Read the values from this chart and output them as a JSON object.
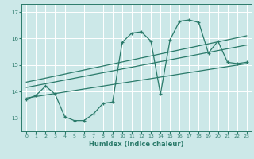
{
  "title": "",
  "xlabel": "Humidex (Indice chaleur)",
  "ylabel": "",
  "bg_color": "#cce8e8",
  "line_color": "#2a7a6a",
  "xlim": [
    -0.5,
    23.5
  ],
  "ylim": [
    12.5,
    17.3
  ],
  "yticks": [
    13,
    14,
    15,
    16,
    17
  ],
  "xticks": [
    0,
    1,
    2,
    3,
    4,
    5,
    6,
    7,
    8,
    9,
    10,
    11,
    12,
    13,
    14,
    15,
    16,
    17,
    18,
    19,
    20,
    21,
    22,
    23
  ],
  "main_x": [
    0,
    1,
    2,
    3,
    4,
    5,
    6,
    7,
    8,
    9,
    10,
    11,
    12,
    13,
    14,
    15,
    16,
    17,
    18,
    19,
    20,
    21,
    22,
    23
  ],
  "main_y": [
    13.7,
    13.85,
    14.2,
    13.9,
    13.05,
    12.9,
    12.9,
    13.15,
    13.55,
    13.6,
    15.85,
    16.2,
    16.25,
    15.9,
    13.9,
    15.95,
    16.65,
    16.7,
    16.6,
    15.45,
    15.9,
    15.1,
    15.05,
    15.1
  ],
  "trend1_x": [
    0,
    23
  ],
  "trend1_y": [
    13.75,
    15.05
  ],
  "trend2_x": [
    0,
    23
  ],
  "trend2_y": [
    14.15,
    15.75
  ],
  "trend3_x": [
    0,
    23
  ],
  "trend3_y": [
    14.35,
    16.1
  ]
}
